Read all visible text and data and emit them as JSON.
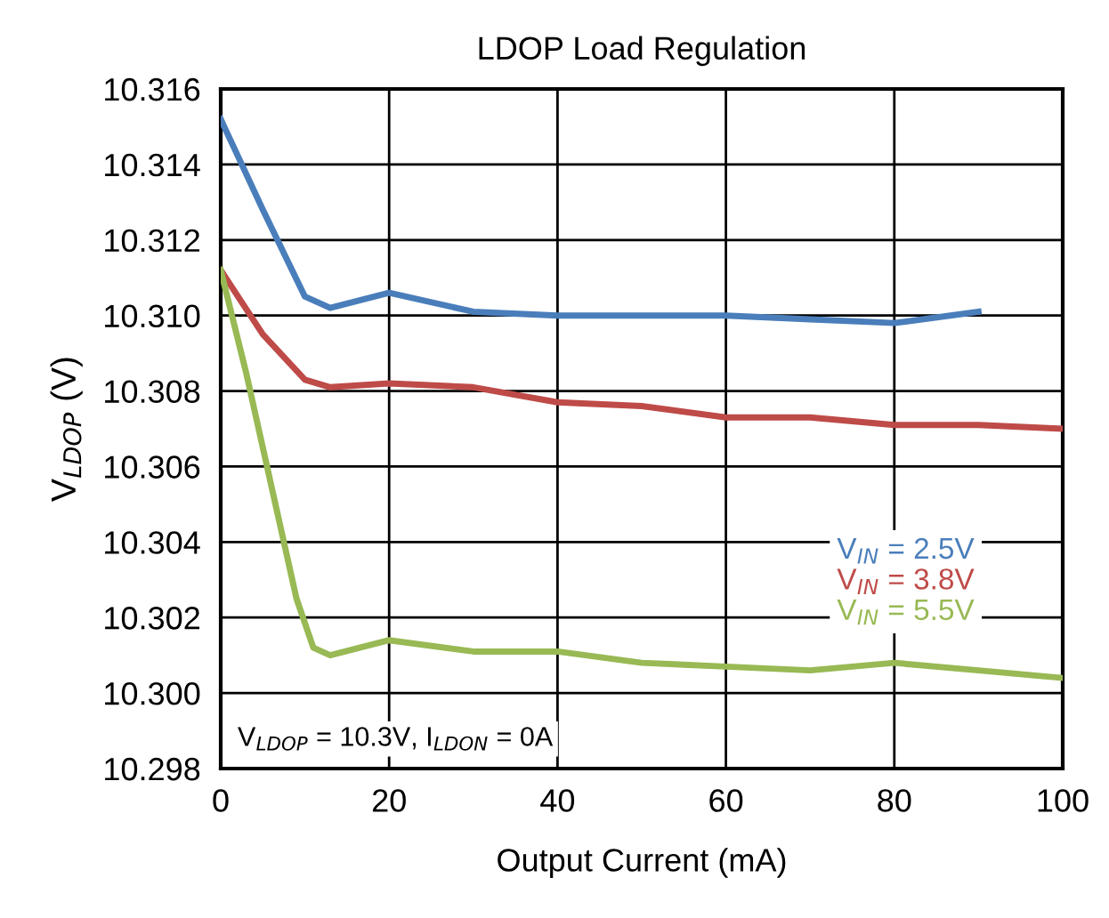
{
  "chart_data": {
    "type": "line",
    "title": "LDOP Load Regulation",
    "xlabel": "Output Current (mA)",
    "ylabel": "V$_{LDOP}$ (V)",
    "series": [
      {
        "name": "V$_{IN}$ = 2.5V",
        "color": "#4a7ebb",
        "x": [
          0,
          5,
          10,
          13,
          20,
          30,
          40,
          50,
          60,
          70,
          80,
          90
        ],
        "values": [
          10.3152,
          10.3128,
          10.3105,
          10.3102,
          10.3106,
          10.3101,
          10.31,
          10.31,
          10.31,
          10.3099,
          10.3098,
          10.3101
        ]
      },
      {
        "name": "V$_{IN}$ = 3.8V",
        "color": "#be4b48",
        "x": [
          0,
          5,
          10,
          13,
          20,
          30,
          40,
          50,
          60,
          70,
          80,
          90,
          100
        ],
        "values": [
          10.3112,
          10.3095,
          10.3083,
          10.3081,
          10.3082,
          10.3081,
          10.3077,
          10.3076,
          10.3073,
          10.3073,
          10.3071,
          10.3071,
          10.307
        ]
      },
      {
        "name": "V$_{IN}$ = 5.5V",
        "color": "#98b954",
        "x": [
          0,
          3,
          6,
          9,
          11,
          13,
          20,
          30,
          40,
          50,
          60,
          70,
          80,
          90,
          100
        ],
        "values": [
          10.3112,
          10.3085,
          10.3055,
          10.3025,
          10.3012,
          10.301,
          10.3014,
          10.3011,
          10.3011,
          10.3008,
          10.3007,
          10.3006,
          10.3008,
          10.3006,
          10.3004
        ]
      }
    ],
    "xlim": [
      0,
      100
    ],
    "xticks": [
      0,
      20,
      40,
      60,
      80,
      100
    ],
    "ylim": [
      10.298,
      10.316
    ],
    "yticks": [
      10.298,
      {
        "value": 10.3,
        "label": "10.300"
      },
      10.302,
      10.304,
      10.306,
      10.308,
      {
        "value": 10.31,
        "label": "10.310"
      },
      10.312,
      10.314,
      10.316
    ],
    "grid": true,
    "legend": "center right",
    "marker": "none",
    "line_style": "solid",
    "annotations": [
      "V$_{LDOP}$ = 10.3V, I$_{LDON}$ = 0A"
    ]
  }
}
